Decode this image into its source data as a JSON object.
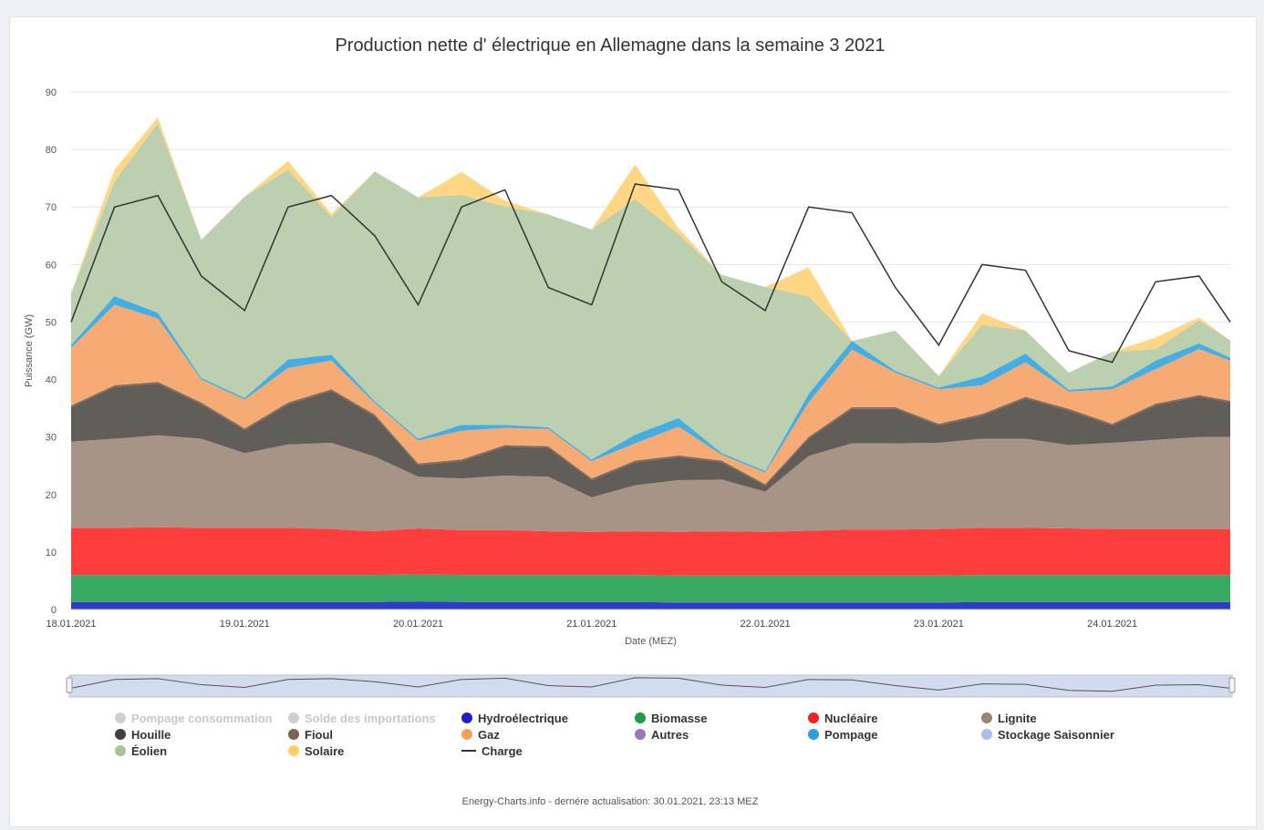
{
  "chart_data": {
    "type": "area",
    "title": "Production nette d' électrique en Allemagne dans la semaine 3 2021",
    "xlabel": "Date (MEZ)",
    "ylabel": "Puissance (GW)",
    "ylim": [
      0,
      90
    ],
    "yticks": [
      0,
      10,
      20,
      30,
      40,
      50,
      60,
      70,
      80,
      90
    ],
    "xlim": [
      0,
      6.68
    ],
    "x_unit": "days since 18.01.2021 00:00",
    "xticks": [
      {
        "x": 0,
        "label": "18.01.2021"
      },
      {
        "x": 1,
        "label": "19.01.2021"
      },
      {
        "x": 2,
        "label": "20.01.2021"
      },
      {
        "x": 3,
        "label": "21.01.2021"
      },
      {
        "x": 4,
        "label": "22.01.2021"
      },
      {
        "x": 5,
        "label": "23.01.2021"
      },
      {
        "x": 6,
        "label": "24.01.2021"
      }
    ],
    "x": [
      0,
      0.25,
      0.5,
      0.75,
      1,
      1.25,
      1.5,
      1.75,
      2,
      2.25,
      2.5,
      2.75,
      3,
      3.25,
      3.5,
      3.75,
      4,
      4.25,
      4.5,
      4.75,
      5,
      5.25,
      5.5,
      5.75,
      6,
      6.25,
      6.5,
      6.68
    ],
    "series": [
      {
        "name": "Hydroélectrique",
        "color": "#2431c4",
        "values": [
          1.3,
          1.3,
          1.3,
          1.3,
          1.3,
          1.3,
          1.3,
          1.3,
          1.4,
          1.3,
          1.3,
          1.3,
          1.3,
          1.3,
          1.2,
          1.2,
          1.2,
          1.2,
          1.2,
          1.2,
          1.2,
          1.3,
          1.3,
          1.3,
          1.3,
          1.3,
          1.3,
          1.3
        ]
      },
      {
        "name": "Biomasse",
        "color": "#2da55a",
        "values": [
          4.7,
          4.7,
          4.7,
          4.7,
          4.7,
          4.7,
          4.7,
          4.7,
          4.7,
          4.7,
          4.7,
          4.7,
          4.7,
          4.7,
          4.7,
          4.7,
          4.7,
          4.7,
          4.7,
          4.7,
          4.7,
          4.7,
          4.7,
          4.7,
          4.7,
          4.7,
          4.7,
          4.7
        ]
      },
      {
        "name": "Nucléaire",
        "color": "#ff3333",
        "values": [
          8.2,
          8.2,
          8.3,
          8.2,
          8.2,
          8.2,
          8.0,
          7.6,
          8.0,
          7.8,
          7.8,
          7.6,
          7.5,
          7.6,
          7.6,
          7.7,
          7.6,
          7.8,
          8.0,
          8.0,
          8.1,
          8.2,
          8.2,
          8.1,
          8.0,
          8.0,
          8.0,
          8.0
        ]
      },
      {
        "name": "Lignite",
        "color": "#a28e80",
        "values": [
          15,
          15.5,
          16,
          15.5,
          13,
          14.5,
          15,
          13,
          9,
          9,
          9.5,
          9.5,
          6,
          8,
          9,
          9,
          7,
          13,
          15,
          15,
          15,
          15.5,
          15.5,
          14.5,
          15,
          15.5,
          16,
          16
        ]
      },
      {
        "name": "Houille",
        "color": "#585450",
        "values": [
          6,
          9,
          9,
          6,
          4,
          7,
          9,
          7,
          2,
          3,
          5,
          5,
          3,
          4,
          4,
          3,
          1,
          3,
          6,
          6,
          3,
          4,
          7,
          6,
          3,
          6,
          7,
          6
        ]
      },
      {
        "name": "Fioul",
        "color": "#7b6353",
        "values": [
          0.3,
          0.3,
          0.3,
          0.3,
          0.3,
          0.3,
          0.3,
          0.3,
          0.3,
          0.3,
          0.3,
          0.3,
          0.3,
          0.3,
          0.3,
          0.3,
          0.3,
          0.3,
          0.3,
          0.3,
          0.3,
          0.3,
          0.3,
          0.3,
          0.3,
          0.3,
          0.3,
          0.3
        ]
      },
      {
        "name": "Gaz",
        "color": "#f6a56d",
        "values": [
          10,
          14,
          11,
          4,
          5,
          6,
          5,
          2,
          4,
          5,
          3,
          3,
          3,
          3,
          5,
          1,
          2,
          6,
          10,
          6,
          6,
          5,
          6,
          3,
          6,
          6,
          8,
          7
        ]
      },
      {
        "name": "Pompage",
        "color": "#3aaae3",
        "values": [
          0.5,
          1.5,
          1,
          0.3,
          0.3,
          1.5,
          1,
          0.3,
          0.3,
          1,
          0.5,
          0.3,
          0.3,
          1.5,
          1.5,
          0.3,
          0.3,
          1.5,
          1.5,
          0.3,
          0.3,
          1.5,
          1.5,
          0.3,
          0.5,
          1.5,
          1,
          0.5
        ]
      },
      {
        "name": "Éolien",
        "color": "#b8ccab",
        "values": [
          9,
          20,
          33,
          24,
          35,
          33,
          24,
          40,
          42,
          40,
          38,
          37,
          40,
          41,
          32,
          31,
          32,
          17,
          0,
          7,
          2,
          9,
          4,
          3,
          6,
          2,
          4,
          3
        ]
      },
      {
        "name": "Solaire",
        "color": "#ffd47c",
        "values": [
          0,
          2,
          1,
          0,
          0,
          1.5,
          0.5,
          0,
          0,
          4,
          1,
          0,
          0,
          6,
          1,
          0,
          0,
          5,
          0,
          0,
          0,
          2,
          0,
          0,
          0,
          2,
          0.5,
          0
        ]
      }
    ],
    "charge": {
      "name": "Charge",
      "color": "#333333",
      "values": [
        50,
        70,
        72,
        58,
        52,
        70,
        72,
        65,
        53,
        70,
        73,
        56,
        53,
        74,
        73,
        57,
        52,
        70,
        69,
        56,
        46,
        60,
        59,
        45,
        43,
        57,
        58,
        50
      ]
    },
    "legend": [
      {
        "name": "Pompage consommation",
        "color": "#c8c8c8",
        "type": "dot",
        "visible": false
      },
      {
        "name": "Solde des importations",
        "color": "#c8c8c8",
        "type": "dot",
        "visible": false
      },
      {
        "name": "Hydroélectrique",
        "color": "#1f1fc8",
        "type": "dot",
        "visible": true
      },
      {
        "name": "Biomasse",
        "color": "#1e9b46",
        "type": "dot",
        "visible": true
      },
      {
        "name": "Nucléaire",
        "color": "#ee2222",
        "type": "dot",
        "visible": true
      },
      {
        "name": "Lignite",
        "color": "#9b8470",
        "type": "dot",
        "visible": true
      },
      {
        "name": "Houille",
        "color": "#404040",
        "type": "dot",
        "visible": true
      },
      {
        "name": "Fioul",
        "color": "#7b6353",
        "type": "dot",
        "visible": true
      },
      {
        "name": "Gaz",
        "color": "#f6a05a",
        "type": "dot",
        "visible": true
      },
      {
        "name": "Autres",
        "color": "#9a78b6",
        "type": "dot",
        "visible": true
      },
      {
        "name": "Pompage",
        "color": "#2a9fdc",
        "type": "dot",
        "visible": true
      },
      {
        "name": "Stockage Saisonnier",
        "color": "#aabcf2",
        "type": "dot",
        "visible": true
      },
      {
        "name": "Éolien",
        "color": "#a8c29a",
        "type": "dot",
        "visible": true
      },
      {
        "name": "Solaire",
        "color": "#ffcc66",
        "type": "dot",
        "visible": true
      },
      {
        "name": "Charge",
        "color": "#333333",
        "type": "line",
        "visible": true
      }
    ],
    "grid": true,
    "legend_position": "bottom"
  },
  "footer": "Energy-Charts.info - dernére actualisation: 30.01.2021, 23:13 MEZ"
}
